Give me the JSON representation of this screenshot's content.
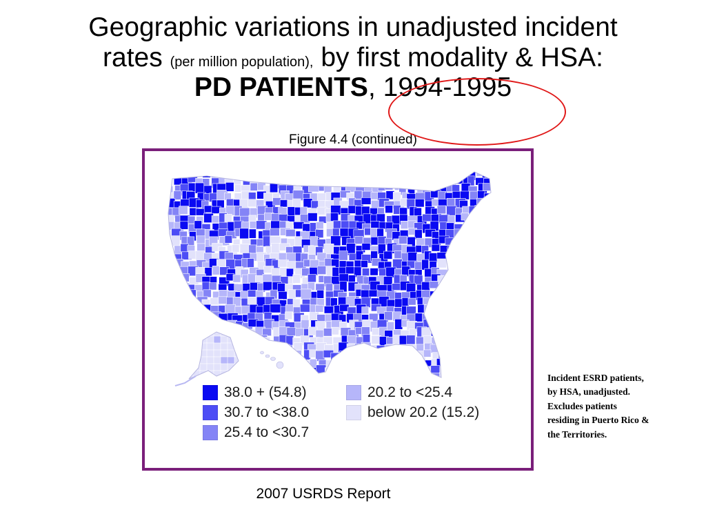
{
  "title": {
    "line1": "Geographic variations in unadjusted incident",
    "line2_main": "rates",
    "line2_small": "(per million population),",
    "line2_rest": "by first modality & HSA:",
    "line3_bold": "PD PATIENTS",
    "line3_sep": ",",
    "line3_year": "1994-1995"
  },
  "subtitle": "Figure 4.4 (continued)",
  "legend": {
    "items": [
      {
        "label": "38.0 + (54.8)",
        "color": "#0a0af2"
      },
      {
        "label": "30.7 to <38.0",
        "color": "#4d4df5"
      },
      {
        "label": "25.4 to <30.7",
        "color": "#8484f6"
      },
      {
        "label": "20.2 to <25.4",
        "color": "#b6b6fa"
      },
      {
        "label": "below 20.2 (15.2)",
        "color": "#e2e2fb"
      }
    ]
  },
  "note": "Incident ESRD patients, by HSA, unadjusted. Excludes patients residing in Puerto Rico & the Territories.",
  "footer": "2007 USRDS Report",
  "colors": {
    "frame": "#7a1f7a",
    "highlight_ring": "#e01818",
    "region_border": "#ffffff"
  }
}
